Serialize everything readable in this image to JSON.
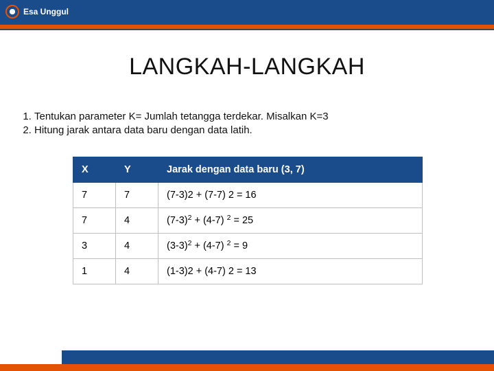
{
  "brand": {
    "name": "Esa Unggul"
  },
  "title": "LANGKAH-LANGKAH",
  "steps": [
    "Tentukan parameter K= Jumlah tetangga terdekar. Misalkan K=3",
    "Hitung jarak antara data baru dengan data latih."
  ],
  "table": {
    "columns": [
      "X",
      "Y",
      "Jarak dengan data baru (3, 7)"
    ],
    "rows": [
      {
        "x": "7",
        "y": "7",
        "jarak_html": "(7-3)2 + (7-7) 2 = 16"
      },
      {
        "x": "7",
        "y": "4",
        "jarak_html": "(7-3)2 + (4-7) 2 = 25",
        "super": true
      },
      {
        "x": "3",
        "y": "4",
        "jarak_html": "(3-3)2 + (4-7) 2 = 9",
        "super": true
      },
      {
        "x": "1",
        "y": "4",
        "jarak_html": "(1-3)2 + (4-7) 2 = 13"
      }
    ],
    "header_bg": "#1a4c8c",
    "header_fg": "#ffffff",
    "border_color": "#bfbfbf",
    "cell_bg": "#ffffff",
    "font_size_pt": 11
  },
  "colors": {
    "brand_blue": "#1a4c8c",
    "brand_orange": "#e35205",
    "text": "#111111",
    "background": "#ffffff"
  }
}
